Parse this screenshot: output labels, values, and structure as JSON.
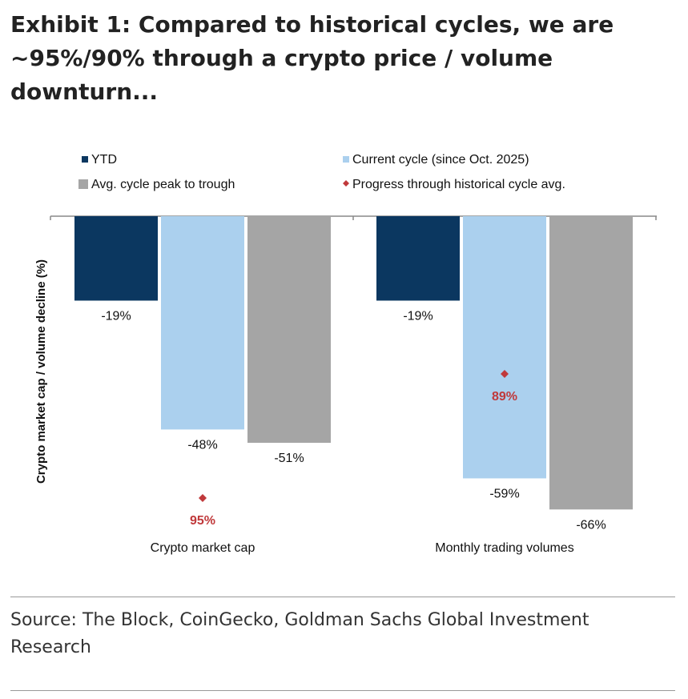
{
  "title": "Exhibit 1: Compared to historical cycles, we are ~95%/90% through a crypto price / volume downturn...",
  "source": "Source: The Block, CoinGecko, Goldman Sachs Global Investment Research",
  "chart_data": {
    "type": "bar",
    "ylabel": "Crypto market cap / volume decline (%)",
    "categories": [
      "Crypto market cap",
      "Monthly trading volumes"
    ],
    "series": [
      {
        "name": "YTD",
        "values": [
          -19,
          -19
        ],
        "labels": [
          "-19%",
          "-19%"
        ],
        "color": "#0b3760"
      },
      {
        "name": "Current cycle (since Oct. 2025)",
        "values": [
          -48,
          -59
        ],
        "labels": [
          "-48%",
          "-59%"
        ],
        "color": "#abd0ee"
      },
      {
        "name": "Avg. cycle peak to trough",
        "values": [
          -51,
          -66
        ],
        "labels": [
          "-51%",
          "-66%"
        ],
        "color": "#a5a5a5"
      }
    ],
    "markers": {
      "name": "Progress through historical cycle avg.",
      "values": [
        95,
        89
      ],
      "labels": [
        "95%",
        "89%"
      ],
      "color": "#c0393b"
    },
    "grid": false,
    "legend": "top"
  }
}
